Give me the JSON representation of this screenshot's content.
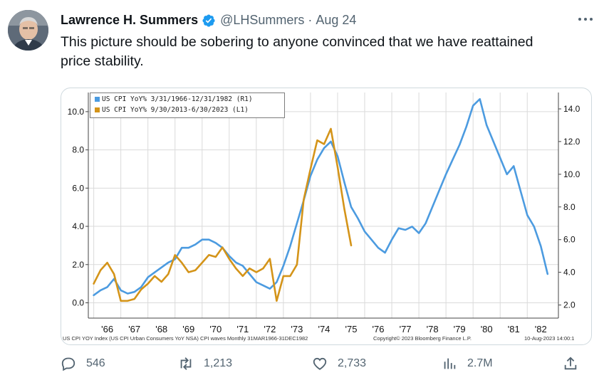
{
  "author": {
    "name": "Lawrence H. Summers",
    "handle": "@LHSummers",
    "separator": "·",
    "date": "Aug 24"
  },
  "tweet": {
    "text": "This picture should be sobering to anyone convinced that we have reattained price stability."
  },
  "chart_data": {
    "type": "line",
    "legend": {
      "placement": "top-left",
      "entries": [
        {
          "label": "US CPI YoY% 3/31/1966-12/31/1982 (R1)",
          "color": "#4c9be0"
        },
        {
          "label": "US CPI YoY% 9/30/2013-6/30/2023 (L1)",
          "color": "#d49419"
        }
      ]
    },
    "x_ticks": [
      "'66",
      "'67",
      "'68",
      "'69",
      "'70",
      "'71",
      "'72",
      "'73",
      "'74",
      "'75",
      "'76",
      "'77",
      "'78",
      "'79",
      "'80",
      "'81",
      "'82"
    ],
    "left_axis": {
      "ticks": [
        "0.0",
        "2.0",
        "4.0",
        "6.0",
        "8.0",
        "10.0"
      ],
      "range": [
        -0.8,
        11.0
      ]
    },
    "right_axis": {
      "ticks": [
        "2.0",
        "4.0",
        "6.0",
        "8.0",
        "10.0",
        "12.0",
        "14.0"
      ],
      "range": [
        1.2,
        15.0
      ]
    },
    "grid": true,
    "series": [
      {
        "name": "US CPI YoY% 3/31/1966-12/31/1982 (R1)",
        "axis": "right",
        "color": "#4c9be0",
        "x": [
          1966.0,
          1966.25,
          1966.5,
          1966.75,
          1967.0,
          1967.25,
          1967.5,
          1967.75,
          1968.0,
          1968.25,
          1968.5,
          1968.75,
          1969.0,
          1969.25,
          1969.5,
          1969.75,
          1970.0,
          1970.25,
          1970.5,
          1970.75,
          1971.0,
          1971.25,
          1971.5,
          1971.75,
          1972.0,
          1972.25,
          1972.5,
          1972.75,
          1973.0,
          1973.25,
          1973.5,
          1973.75,
          1974.0,
          1974.25,
          1974.5,
          1974.75,
          1975.0,
          1975.25,
          1975.5,
          1975.75,
          1976.0,
          1976.25,
          1976.5,
          1976.75,
          1977.0,
          1977.25,
          1977.5,
          1977.75,
          1978.0,
          1978.25,
          1978.5,
          1978.75,
          1979.0,
          1979.25,
          1979.5,
          1979.75,
          1980.0,
          1980.25,
          1980.5,
          1980.75,
          1981.0,
          1981.25,
          1981.5,
          1981.75,
          1982.0,
          1982.25,
          1982.5,
          1982.75
        ],
        "values": [
          2.6,
          2.9,
          3.1,
          3.6,
          2.9,
          2.7,
          2.8,
          3.1,
          3.7,
          4.0,
          4.3,
          4.6,
          4.8,
          5.5,
          5.5,
          5.7,
          6.0,
          6.0,
          5.8,
          5.5,
          5.0,
          4.6,
          4.4,
          3.9,
          3.4,
          3.2,
          3.0,
          3.4,
          4.4,
          5.6,
          7.0,
          8.4,
          9.9,
          10.9,
          11.6,
          12.0,
          11.1,
          9.5,
          8.0,
          7.3,
          6.5,
          6.0,
          5.5,
          5.2,
          6.0,
          6.7,
          6.6,
          6.8,
          6.4,
          7.0,
          8.0,
          9.0,
          10.0,
          10.9,
          11.8,
          12.9,
          14.2,
          14.6,
          13.0,
          12.0,
          11.0,
          10.0,
          10.5,
          9.0,
          7.5,
          6.8,
          5.6,
          3.9
        ]
      },
      {
        "name": "US CPI YoY% 9/30/2013-6/30/2023 (L1)",
        "axis": "left",
        "color": "#d49419",
        "x": [
          1966.0,
          1966.25,
          1966.5,
          1966.75,
          1967.0,
          1967.25,
          1967.5,
          1967.75,
          1968.0,
          1968.25,
          1968.5,
          1968.75,
          1969.0,
          1969.25,
          1969.5,
          1969.75,
          1970.0,
          1970.25,
          1970.5,
          1970.75,
          1971.0,
          1971.25,
          1971.5,
          1971.75,
          1972.0,
          1972.25,
          1972.5,
          1972.75,
          1973.0,
          1973.25,
          1973.5,
          1973.75,
          1974.0,
          1974.25,
          1974.5,
          1974.75,
          1975.0,
          1975.25,
          1975.5
        ],
        "values": [
          1.0,
          1.7,
          2.1,
          1.5,
          0.1,
          0.1,
          0.2,
          0.7,
          1.0,
          1.4,
          1.1,
          1.5,
          2.5,
          2.1,
          1.6,
          1.7,
          2.1,
          2.5,
          2.4,
          2.9,
          2.3,
          1.8,
          1.4,
          1.8,
          1.6,
          1.8,
          2.3,
          0.1,
          1.4,
          1.4,
          2.0,
          5.4,
          7.0,
          8.5,
          8.3,
          9.1,
          7.1,
          4.9,
          3.0
        ]
      }
    ],
    "footer_left": "US CPI YOY Index (US CPI Urban Consumers YoY NSA) CPI waves Monthly 31MAR1966-31DEC1982",
    "footer_copyright": "Copyright© 2023 Bloomberg Finance L.P.",
    "footer_timestamp": "10-Aug-2023 14:00:1"
  },
  "actions": {
    "replies": "546",
    "retweets": "1,213",
    "likes": "2,733",
    "views": "2.7M"
  },
  "colors": {
    "text": "#0f1419",
    "secondary": "#536471",
    "verified": "#1d9bf0",
    "border": "#cfd9de"
  }
}
